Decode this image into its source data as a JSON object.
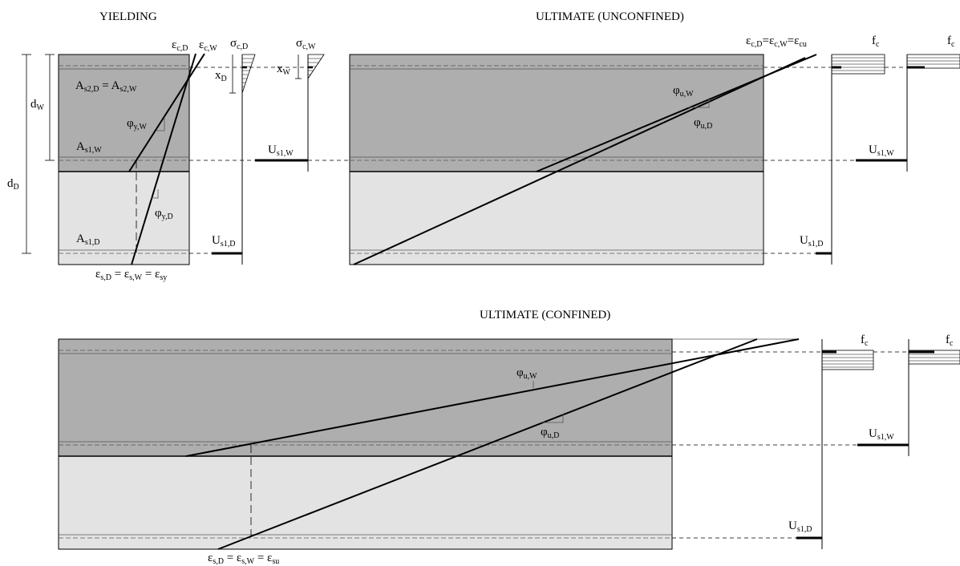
{
  "titles": {
    "yielding": "YIELDING",
    "ultimate_unconfined": "ULTIMATE (UNCONFINED)",
    "ultimate_confined": "ULTIMATE (CONFINED)"
  },
  "yielding": {
    "eps_c_d": {
      "sym": "ε",
      "sub": "c,D"
    },
    "eps_c_w": {
      "sym": "ε",
      "sub": "c,W"
    },
    "sigma_c_d": {
      "sym": "σ",
      "sub": "c,D"
    },
    "sigma_c_w": {
      "sym": "σ",
      "sub": "c,W"
    },
    "x_d": {
      "sym": "x",
      "sub": "D"
    },
    "x_w": {
      "sym": "x",
      "sub": "W"
    },
    "d_w": {
      "sym": "d",
      "sub": "W"
    },
    "d_d": {
      "sym": "d",
      "sub": "D"
    },
    "as2_d": {
      "sym": "A",
      "sub": "s2,D"
    },
    "as2_eq": " = ",
    "as2_w": {
      "sym": "A",
      "sub": "s2,W"
    },
    "as1_w": {
      "sym": "A",
      "sub": "s1,W"
    },
    "as1_d": {
      "sym": "A",
      "sub": "s1,D"
    },
    "phi_y_w": {
      "sym": "φ",
      "sub": "y,W"
    },
    "phi_y_d": {
      "sym": "φ",
      "sub": "y,D"
    },
    "us1_w": {
      "sym": "U",
      "sub": "s1,W"
    },
    "us1_d": {
      "sym": "U",
      "sub": "s1,D"
    },
    "eps_bottom": {
      "e1": "ε",
      "s1": "s,D",
      "eq1": " = ",
      "e2": "ε",
      "s2": "s,W",
      "eq2": " = ",
      "e3": "ε",
      "s3": "sy"
    }
  },
  "unconfined": {
    "eps_top": {
      "e1": "ε",
      "s1": "c,D",
      "eq1": "=",
      "e2": "ε",
      "s2": "c,W",
      "eq2": "=",
      "e3": "ε",
      "s3": "cu"
    },
    "fc_1": {
      "sym": "f",
      "sub": "c"
    },
    "fc_2": {
      "sym": "f",
      "sub": "c"
    },
    "phi_u_w": {
      "sym": "φ",
      "sub": "u,W"
    },
    "phi_u_d": {
      "sym": "φ",
      "sub": "u,D"
    },
    "us1_w": {
      "sym": "U",
      "sub": "s1,W"
    },
    "us1_d": {
      "sym": "U",
      "sub": "s1,D"
    }
  },
  "confined": {
    "fc_1": {
      "sym": "f",
      "sub": "c"
    },
    "fc_2": {
      "sym": "f",
      "sub": "c"
    },
    "phi_u_w": {
      "sym": "φ",
      "sub": "u,W"
    },
    "phi_u_d": {
      "sym": "φ",
      "sub": "u,D"
    },
    "us1_w": {
      "sym": "U",
      "sub": "s1,W"
    },
    "us1_d": {
      "sym": "U",
      "sub": "s1,D"
    },
    "eps_bottom": {
      "e1": "ε",
      "s1": "s,D",
      "eq1": " = ",
      "e2": "ε",
      "s2": "s,W",
      "eq2": " = ",
      "e3": "ε",
      "s3": "su"
    }
  },
  "colors": {
    "zone_wall": "#aeaeae",
    "zone_deck": "#e3e3e3",
    "line": "#000000"
  }
}
